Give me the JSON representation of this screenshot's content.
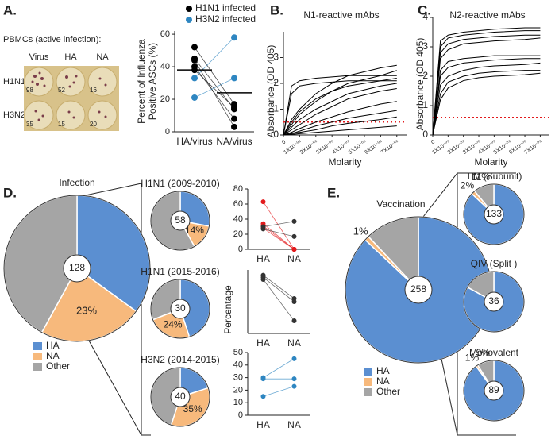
{
  "panel_labels": [
    "A.",
    "B.",
    "C.",
    "D.",
    "E."
  ],
  "elispot": {
    "title": "PBMCs (active infection):",
    "columns": [
      "Virus",
      "HA",
      "NA"
    ],
    "rows": [
      "H1N1",
      "H3N2"
    ],
    "counts": [
      [
        98,
        52,
        16
      ],
      [
        35,
        15,
        20
      ]
    ]
  },
  "chart_data": [
    {
      "type": "paired",
      "ylabel": [
        "Percent of Influenza",
        "Positive ASCs (%)"
      ],
      "categories": [
        "HA/virus",
        "NA/virus"
      ],
      "ylim": [
        0,
        62
      ],
      "yticks": [
        0,
        20,
        40,
        60
      ],
      "medians": [
        38,
        24
      ],
      "series": [
        {
          "name": "H1N1 infected",
          "color": "#000000",
          "values": [
            [
              52,
              17
            ],
            [
              45,
              14
            ],
            [
              44,
              3
            ],
            [
              40,
              8
            ],
            [
              38,
              15
            ]
          ]
        },
        {
          "name": "H3N2 infected",
          "color": "#2e86c1",
          "values": [
            [
              33,
              58
            ],
            [
              21,
              33
            ]
          ]
        }
      ]
    },
    {
      "type": "curves",
      "title": "N1-reactive mAbs",
      "xlabel": "Molarity",
      "ylabel": "Absorbance (OD 405)",
      "x": [
        0,
        5e-09,
        1e-08,
        2e-08,
        3e-08,
        4e-08,
        6e-08,
        7e-08
      ],
      "xlim": [
        0,
        7.6e-08
      ],
      "xticks": [
        0,
        {
          "value": 1e-08,
          "label": "1X10⁻⁰⁸"
        },
        {
          "value": 2e-08,
          "label": "2X10⁻⁰⁸"
        },
        {
          "value": 3e-08,
          "label": "3X10⁻⁰⁸"
        },
        {
          "value": 4e-08,
          "label": "4X10⁻⁰⁸"
        },
        {
          "value": 5e-08,
          "label": "5X10⁻⁰⁸"
        },
        {
          "value": 6e-08,
          "label": "6X10⁻⁰⁸"
        },
        {
          "value": 7e-08,
          "label": "7X10⁻⁰⁸"
        }
      ],
      "ylim": [
        0,
        4
      ],
      "yticks": [
        0,
        1,
        2,
        3
      ],
      "threshold": 0.5,
      "threshold_color": "#e31a1c",
      "color": "#000000",
      "series": [
        {
          "values": [
            0,
            1.9,
            2.1,
            2.2,
            2.25,
            2.3,
            2.3,
            2.3
          ]
        },
        {
          "values": [
            0,
            1.6,
            1.9,
            2.0,
            2.05,
            2.1,
            2.1,
            2.1
          ]
        },
        {
          "values": [
            0,
            0.6,
            1.0,
            1.6,
            2.0,
            2.3,
            2.6,
            2.7
          ]
        },
        {
          "values": [
            0,
            0.4,
            0.8,
            1.3,
            1.7,
            2.0,
            2.3,
            2.5
          ]
        },
        {
          "values": [
            0,
            0.5,
            0.9,
            1.4,
            1.7,
            1.9,
            2.1,
            2.2
          ]
        },
        {
          "values": [
            0,
            0.3,
            0.6,
            1.0,
            1.3,
            1.6,
            1.9,
            2.0
          ]
        },
        {
          "values": [
            0,
            0.2,
            0.4,
            0.8,
            1.1,
            1.4,
            1.7,
            1.8
          ]
        },
        {
          "values": [
            0,
            0.1,
            0.25,
            0.5,
            0.7,
            0.9,
            1.2,
            1.3
          ]
        },
        {
          "values": [
            0,
            0.05,
            0.15,
            0.35,
            0.5,
            0.65,
            0.85,
            0.95
          ]
        },
        {
          "values": [
            0,
            0.05,
            0.1,
            0.2,
            0.35,
            0.45,
            0.6,
            0.7
          ]
        },
        {
          "values": [
            0,
            0.02,
            0.05,
            0.1,
            0.15,
            0.2,
            0.3,
            0.35
          ]
        }
      ]
    },
    {
      "type": "curves",
      "title": "N2-reactive mAbs",
      "xlabel": "Molarity",
      "ylabel": "Absorbance (OD 405)",
      "x": [
        0,
        5e-09,
        1e-08,
        2e-08,
        3e-08,
        4e-08,
        6e-08,
        7e-08
      ],
      "xlim": [
        0,
        7.6e-08
      ],
      "xticks": [
        0,
        {
          "value": 1e-08,
          "label": "1X10⁻⁰⁸"
        },
        {
          "value": 2e-08,
          "label": "2X10⁻⁰⁸"
        },
        {
          "value": 3e-08,
          "label": "3X10⁻⁰⁸"
        },
        {
          "value": 4e-08,
          "label": "4X10⁻⁰⁸"
        },
        {
          "value": 5e-08,
          "label": "5X10⁻⁰⁸"
        },
        {
          "value": 6e-08,
          "label": "6X10⁻⁰⁸"
        },
        {
          "value": 7e-08,
          "label": "7X10⁻⁰⁸"
        }
      ],
      "ylim": [
        0,
        4
      ],
      "yticks": [
        0,
        1,
        2,
        3,
        4
      ],
      "threshold": 0.6,
      "threshold_color": "#e31a1c",
      "color": "#000000",
      "series": [
        {
          "values": [
            0,
            3.2,
            3.4,
            3.5,
            3.55,
            3.6,
            3.65,
            3.65
          ]
        },
        {
          "values": [
            0,
            3.0,
            3.3,
            3.4,
            3.45,
            3.5,
            3.55,
            3.55
          ]
        },
        {
          "values": [
            0,
            2.8,
            3.1,
            3.25,
            3.3,
            3.35,
            3.4,
            3.4
          ]
        },
        {
          "values": [
            0,
            2.6,
            2.9,
            3.1,
            3.15,
            3.2,
            3.25,
            3.3
          ]
        },
        {
          "values": [
            0,
            2.2,
            2.5,
            2.6,
            2.65,
            2.7,
            2.7,
            2.7
          ]
        },
        {
          "values": [
            0,
            2.0,
            2.3,
            2.45,
            2.5,
            2.55,
            2.6,
            2.6
          ]
        },
        {
          "values": [
            0,
            1.7,
            2.0,
            2.2,
            2.3,
            2.35,
            2.4,
            2.45
          ]
        },
        {
          "values": [
            0,
            1.4,
            1.8,
            2.0,
            2.1,
            2.15,
            2.2,
            2.2
          ]
        },
        {
          "values": [
            0,
            1.2,
            1.6,
            1.85,
            1.95,
            2.0,
            2.05,
            2.1
          ]
        }
      ]
    },
    {
      "type": "pie",
      "title": "Infection",
      "total": 128,
      "categories": [
        "HA",
        "NA",
        "Other"
      ],
      "colors": [
        "#5b8fd1",
        "#f7b97c",
        "#a5a5a5"
      ],
      "values": [
        35,
        23,
        42
      ],
      "value_labels": [
        null,
        "23%",
        null
      ],
      "legend": true
    },
    {
      "type": "pie",
      "title": "H1N1 (2009-2010)",
      "total": 58,
      "categories": [
        "HA",
        "NA",
        "Other"
      ],
      "colors": [
        "#5b8fd1",
        "#f7b97c",
        "#a5a5a5"
      ],
      "values": [
        28,
        14,
        58
      ],
      "value_labels": [
        null,
        "14%",
        null
      ]
    },
    {
      "type": "pie",
      "title": "H1N1 (2015-2016)",
      "total": 30,
      "categories": [
        "HA",
        "NA",
        "Other"
      ],
      "colors": [
        "#5b8fd1",
        "#f7b97c",
        "#a5a5a5"
      ],
      "values": [
        45,
        24,
        31
      ],
      "value_labels": [
        null,
        "24%",
        null
      ]
    },
    {
      "type": "pie",
      "title": "H3N2 (2014-2015)",
      "total": 40,
      "categories": [
        "HA",
        "NA",
        "Other"
      ],
      "colors": [
        "#5b8fd1",
        "#f7b97c",
        "#a5a5a5"
      ],
      "values": [
        20,
        35,
        45
      ],
      "value_labels": [
        null,
        "35%",
        null
      ]
    },
    {
      "type": "paired",
      "categories": [
        "HA",
        "NA"
      ],
      "ylim": [
        0,
        80
      ],
      "yticks": [
        0,
        20,
        40,
        60,
        80
      ],
      "series": [
        {
          "color": "#e31a1c",
          "values": [
            [
              63,
              0
            ],
            [
              34,
              0
            ],
            [
              31,
              0
            ],
            [
              28,
              0
            ]
          ]
        },
        {
          "color": "#333333",
          "values": [
            [
              30,
              37
            ],
            [
              27,
              17
            ]
          ]
        }
      ]
    },
    {
      "type": "paired",
      "ylabel": "Percentage",
      "categories": [
        "HA",
        "NA"
      ],
      "ylim": [
        0,
        60
      ],
      "series": [
        {
          "color": "#333333",
          "values": [
            [
              55,
              33
            ],
            [
              53,
              30
            ],
            [
              51,
              12
            ]
          ]
        }
      ]
    },
    {
      "type": "paired",
      "categories": [
        "HA",
        "NA"
      ],
      "ylim": [
        0,
        50
      ],
      "yticks": [
        0,
        10,
        20,
        30,
        40,
        50
      ],
      "series": [
        {
          "color": "#2e86c1",
          "values": [
            [
              30,
              45
            ],
            [
              29,
              29
            ],
            [
              15,
              23
            ]
          ]
        }
      ]
    },
    {
      "type": "pie",
      "title": "Vaccination",
      "total": 258,
      "categories": [
        "HA",
        "NA",
        "Other"
      ],
      "colors": [
        "#5b8fd1",
        "#f7b97c",
        "#a5a5a5"
      ],
      "values": [
        87,
        1,
        12
      ],
      "value_labels": [
        null,
        "1%",
        null
      ],
      "legend": true
    },
    {
      "type": "pie",
      "title": "TIV (Subunit)",
      "total": 133,
      "categories": [
        "HA",
        "NA",
        "Other"
      ],
      "colors": [
        "#5b8fd1",
        "#f7b97c",
        "#a5a5a5"
      ],
      "values": [
        87,
        2,
        11
      ],
      "value_labels": [
        null,
        "2%",
        "11%"
      ]
    },
    {
      "type": "pie",
      "title": "QIV (Split )",
      "total": 36,
      "categories": [
        "HA",
        "NA",
        "Other"
      ],
      "colors": [
        "#5b8fd1",
        "#f7b97c",
        "#a5a5a5"
      ],
      "values": [
        83,
        0,
        17
      ],
      "value_labels": [
        null,
        null,
        null
      ]
    },
    {
      "type": "pie",
      "title": "Monovalent",
      "total": 89,
      "categories": [
        "HA",
        "NA",
        "Other"
      ],
      "colors": [
        "#5b8fd1",
        "#f7b97c",
        "#a5a5a5"
      ],
      "values": [
        90,
        1,
        9
      ],
      "value_labels": [
        null,
        "1%",
        "9%"
      ]
    }
  ]
}
